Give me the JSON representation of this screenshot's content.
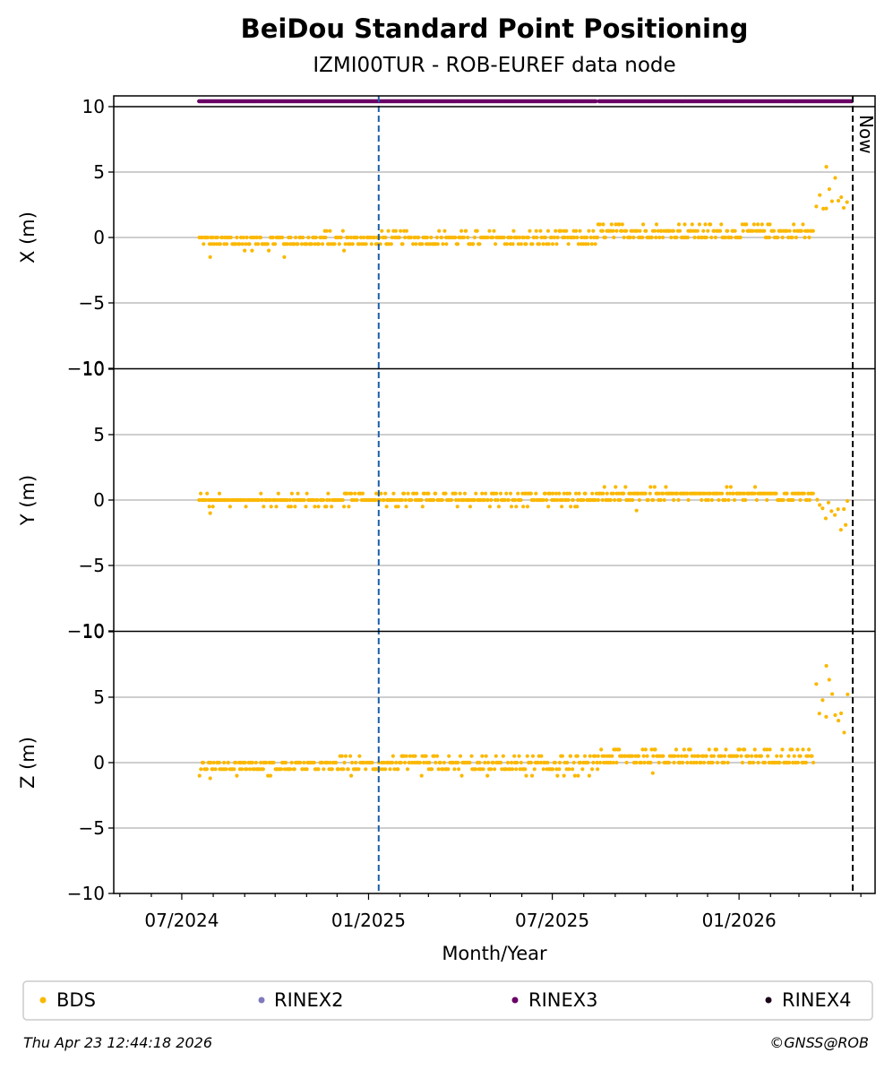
{
  "chart_data": {
    "type": "scatter",
    "title": "BeiDou Standard Point Positioning",
    "subtitle": "IZMI00TUR - ROB-EUREF data node",
    "xlabel": "Month/Year",
    "x_tick_labels": [
      "07/2024",
      "01/2025",
      "07/2025",
      "01/2026"
    ],
    "x_ticks": [
      "2024-07-01",
      "2025-01-01",
      "2025-07-01",
      "2026-01-01"
    ],
    "xlim": [
      "2024-04-25",
      "2026-05-15"
    ],
    "ylim": [
      -10,
      10
    ],
    "y_ticks": [
      -10,
      -5,
      0,
      5,
      10
    ],
    "y_tick_labels": [
      "−10",
      "−5",
      "0",
      "5",
      "10"
    ],
    "grid": "horizontal",
    "now_date": "2026-04-23",
    "now_label": "Now",
    "reference_date": "2025-01-11",
    "panels": [
      {
        "ylabel": "X (m)",
        "segments": [
          {
            "from": "2024-07-18",
            "to": "2024-11-18",
            "mean": -0.3,
            "spread": 0.5
          },
          {
            "from": "2024-11-18",
            "to": "2025-01-20",
            "mean": -0.2,
            "spread": 0.6
          },
          {
            "from": "2025-01-20",
            "to": "2025-08-15",
            "mean": -0.1,
            "spread": 0.5
          },
          {
            "from": "2025-08-15",
            "to": "2026-03-15",
            "mean": 0.4,
            "spread": 0.5
          },
          {
            "from": "2026-03-18",
            "to": "2026-04-20",
            "mean": 3.2,
            "spread": 1.6
          }
        ],
        "outliers": [
          {
            "x": "2024-07-29",
            "y": -1.5
          },
          {
            "x": "2024-10-10",
            "y": -1.5
          },
          {
            "x": "2026-03-28",
            "y": 5.4
          }
        ]
      },
      {
        "ylabel": "Y (m)",
        "segments": [
          {
            "from": "2024-07-18",
            "to": "2024-12-01",
            "mean": 0.0,
            "spread": 0.3
          },
          {
            "from": "2024-12-01",
            "to": "2025-01-20",
            "mean": 0.1,
            "spread": 0.4
          },
          {
            "from": "2025-01-20",
            "to": "2025-08-15",
            "mean": 0.1,
            "spread": 0.4
          },
          {
            "from": "2025-08-15",
            "to": "2026-03-15",
            "mean": 0.4,
            "spread": 0.4
          },
          {
            "from": "2026-03-18",
            "to": "2026-04-20",
            "mean": -0.8,
            "spread": 1.1
          }
        ],
        "outliers": [
          {
            "x": "2024-07-29",
            "y": -1.0
          },
          {
            "x": "2025-09-22",
            "y": -0.8
          },
          {
            "x": "2026-04-16",
            "y": -1.9
          }
        ]
      },
      {
        "ylabel": "Z (m)",
        "segments": [
          {
            "from": "2024-07-18",
            "to": "2024-12-01",
            "mean": -0.3,
            "spread": 0.5
          },
          {
            "from": "2024-12-01",
            "to": "2025-01-20",
            "mean": -0.2,
            "spread": 0.6
          },
          {
            "from": "2025-01-20",
            "to": "2025-08-15",
            "mean": -0.2,
            "spread": 0.6
          },
          {
            "from": "2025-08-15",
            "to": "2026-03-15",
            "mean": 0.4,
            "spread": 0.6
          },
          {
            "from": "2026-03-18",
            "to": "2026-04-20",
            "mean": 4.5,
            "spread": 2.4
          }
        ],
        "outliers": [
          {
            "x": "2024-07-29",
            "y": -1.2
          },
          {
            "x": "2025-10-08",
            "y": -0.8
          },
          {
            "x": "2026-03-28",
            "y": 7.4
          }
        ]
      }
    ],
    "series": [
      {
        "name": "BDS",
        "color": "#fbb800"
      },
      {
        "name": "RINEX2",
        "color": "#7e7abb"
      },
      {
        "name": "RINEX3",
        "color": "#6a0066"
      },
      {
        "name": "RINEX4",
        "color": "#1b0618"
      }
    ],
    "rinex3_coverage": [
      {
        "from": "2024-07-18",
        "to": "2025-01-11"
      },
      {
        "from": "2025-01-12",
        "to": "2025-08-13"
      },
      {
        "from": "2025-08-16",
        "to": "2026-04-22"
      }
    ],
    "reference_line_color": "#1a5fa8",
    "legend_position": "bottom"
  },
  "footer": {
    "timestamp": "Thu Apr 23 12:44:18 2026",
    "credit": "©GNSS@ROB"
  }
}
